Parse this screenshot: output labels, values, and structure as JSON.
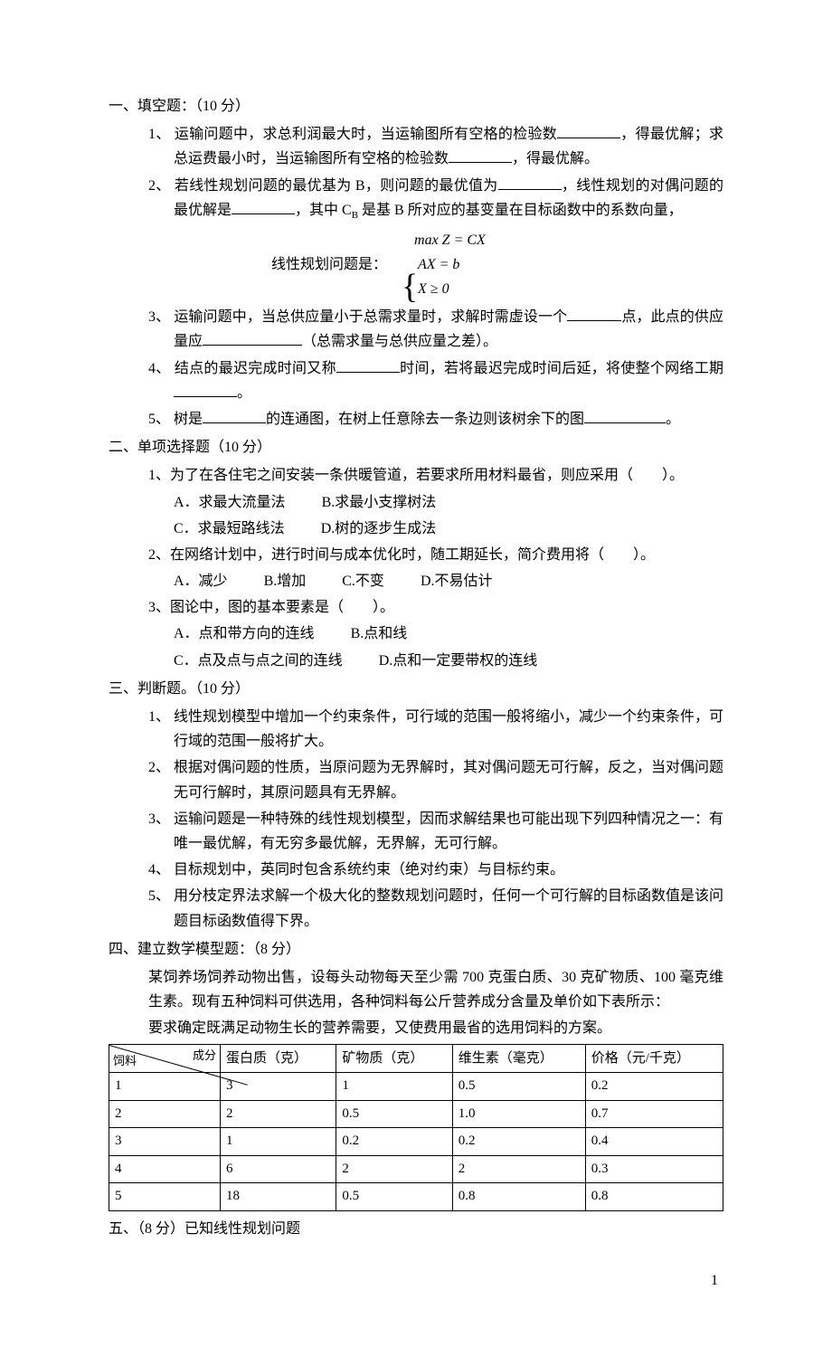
{
  "s1": {
    "title": "一、填空题：（10 分）",
    "q1a": "1、 运输问题中，求总利润最大时，当运输图所有空格的检验数",
    "q1b": "，得最优解；求总运费最小时，当运输图所有空格的检验数",
    "q1c": "，得最优解。",
    "q2a": "2、 若线性规划问题的最优基为 B，则问题的最优值为",
    "q2b": "，线性规划的对偶问题的最优解是",
    "q2c": "，其中 C",
    "q2c_sub": "B",
    "q2d": " 是基 B 所对应的基变量在目标函数中的系数向量，",
    "q2e": "线性规划问题是：",
    "math1": "max Z = CX",
    "math2": "AX = b",
    "math3": "X ≥ 0",
    "q3a": "3、 运输问题中，当总供应量小于总需求量时，求解时需虚设一个",
    "q3b": "点，此点的供应量应",
    "q3c": "（总需求量与总供应量之差）。",
    "q4a": "4、 结点的最迟完成时间又称",
    "q4b": "时间，若将最迟完成时间后延，将使整个网络工期",
    "q4c": "。",
    "q5a": "5、 树是",
    "q5b": "的连通图，在树上任意除去一条边则该树余下的图",
    "q5c": "。"
  },
  "s2": {
    "title": "二、单项选择题（10 分）",
    "q1": "1、为了在各住宅之间安装一条供暖管道，若要求所用材料最省，则应采用（　　）。",
    "q1a": "A．求最大流量法",
    "q1b": "B.求最小支撑树法",
    "q1c": "C．求最短路线法",
    "q1d": "D.树的逐步生成法",
    "q2": "2、在网络计划中，进行时间与成本优化时，随工期延长，简介费用将（　　）。",
    "q2a": "A．减少",
    "q2b": "B.增加",
    "q2c": "C.不变",
    "q2d": "D.不易估计",
    "q3": "3、图论中，图的基本要素是（　　）。",
    "q3a": "A．点和带方向的连线",
    "q3b": "B.点和线",
    "q3c": "C．点及点与点之间的连线",
    "q3d": "D.点和一定要带权的连线"
  },
  "s3": {
    "title": "三、判断题。（10 分）",
    "q1": "1、 线性规划模型中增加一个约束条件，可行域的范围一般将缩小，减少一个约束条件，可行域的范围一般将扩大。",
    "q2": "2、 根据对偶问题的性质，当原问题为无界解时，其对偶问题无可行解，反之，当对偶问题无可行解时，其原问题具有无界解。",
    "q3": "3、 运输问题是一种特殊的线性规划模型，因而求解结果也可能出现下列四种情况之一：有唯一最优解，有无穷多最优解，无界解，无可行解。",
    "q4": "4、 目标规划中，英同时包含系统约束（绝对约束）与目标约束。",
    "q5": "5、 用分枝定界法求解一个极大化的整数规划问题时，任何一个可行解的目标函数值是该问题目标函数值得下界。"
  },
  "s4": {
    "title": "四、建立数学模型题：（8 分）",
    "p1": "某饲养场饲养动物出售，设每头动物每天至少需 700 克蛋白质、30 克矿物质、100 毫克维生素。现有五种饲料可供选用，各种饲料每公斤营养成分含量及单价如下表所示：",
    "p2": "要求确定既满足动物生长的营养需要，又使费用最省的选用饲料的方案。",
    "table": {
      "head_left": "饲料",
      "head_right": "成分",
      "cols": [
        "蛋白质（克）",
        "矿物质（克）",
        "维生素（毫克）",
        "价格（元/千克）"
      ],
      "rows": [
        [
          "1",
          "3",
          "1",
          "0.5",
          "0.2"
        ],
        [
          "2",
          "2",
          "0.5",
          "1.0",
          "0.7"
        ],
        [
          "3",
          "1",
          "0.2",
          "0.2",
          "0.4"
        ],
        [
          "4",
          "6",
          "2",
          "2",
          "0.3"
        ],
        [
          "5",
          "18",
          "0.5",
          "0.8",
          "0.8"
        ]
      ]
    }
  },
  "s5": {
    "title": "五、（8 分）已知线性规划问题"
  },
  "pagenum": "1"
}
